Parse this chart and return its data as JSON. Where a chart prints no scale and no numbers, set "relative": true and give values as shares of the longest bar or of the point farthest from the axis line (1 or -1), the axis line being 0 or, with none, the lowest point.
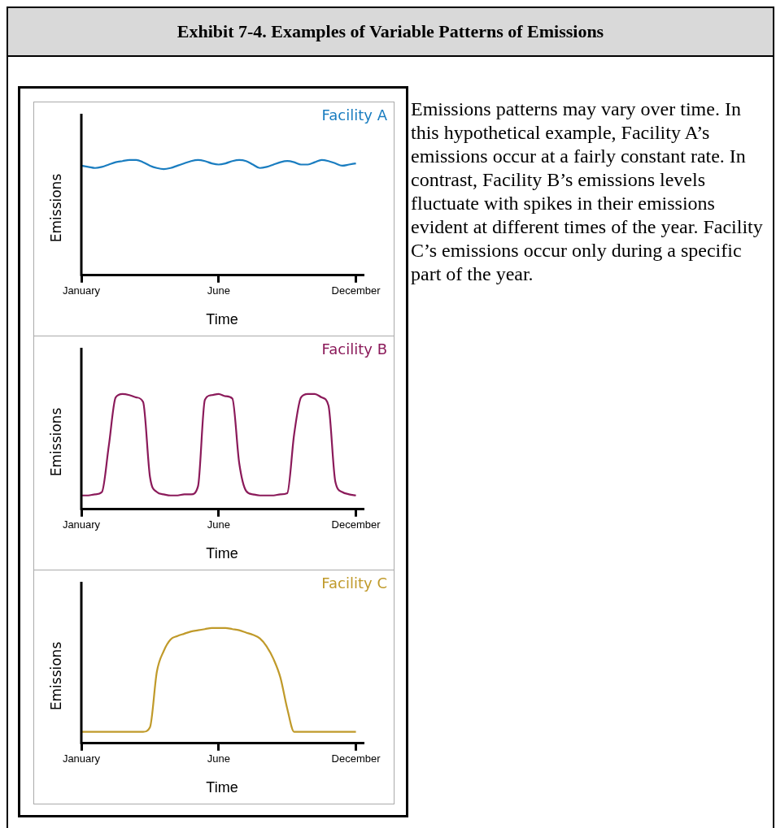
{
  "chart_data": [
    {
      "type": "line",
      "relative": true,
      "title": "Exhibit 7-4.  Examples of Variable Patterns of Emissions",
      "annotations": [
        "Emissions patterns may vary over time.  In this hypothetical example, Facility A’s emissions occur at a fairly constant rate.  In contrast, Facility B’s emissions levels fluctuate with spikes in their emissions evident at different times of the year.  Facility C’s emissions occur only during a specific part of the year."
      ],
      "xlabel": "Time",
      "ylabel": "Emissions",
      "categories": [
        "January",
        null,
        null,
        null,
        null,
        null,
        null,
        null,
        null,
        null,
        null,
        null,
        null,
        null,
        null,
        null,
        null,
        null,
        null,
        null,
        "June",
        null,
        null,
        null,
        null,
        null,
        null,
        null,
        null,
        null,
        null,
        null,
        null,
        null,
        null,
        null,
        null,
        null,
        null,
        null,
        "December",
        null
      ],
      "series": [
        {
          "name": "Facility A",
          "color": "#1a7dc0",
          "values": [
            0.95,
            0.94,
            0.93,
            0.94,
            0.96,
            0.98,
            0.99,
            1.0,
            1.0,
            0.98,
            0.95,
            0.93,
            0.92,
            0.93,
            0.95,
            0.97,
            0.99,
            1.0,
            0.99,
            0.97,
            0.96,
            0.97,
            0.99,
            1.0,
            0.99,
            0.96,
            0.93,
            0.94,
            0.96,
            0.98,
            0.99,
            0.98,
            0.96,
            0.96,
            0.98,
            1.0,
            0.99,
            0.97,
            0.95,
            0.96,
            0.97,
            null
          ]
        }
      ]
    },
    {
      "type": "line",
      "relative": true,
      "xlabel": "Time",
      "ylabel": "Emissions",
      "categories": [
        "January",
        null,
        null,
        null,
        null,
        null,
        null,
        null,
        null,
        null,
        null,
        null,
        null,
        null,
        null,
        null,
        null,
        null,
        null,
        null,
        "June",
        null,
        null,
        null,
        null,
        null,
        null,
        null,
        null,
        null,
        null,
        null,
        null,
        null,
        null,
        null,
        null,
        null,
        null,
        null,
        "December",
        null
      ],
      "series": [
        {
          "name": "Facility B",
          "color": "#8b1a5a",
          "values": [
            0.12,
            0.12,
            0.13,
            0.15,
            0.55,
            0.97,
            1.0,
            0.99,
            0.97,
            0.93,
            0.28,
            0.15,
            0.13,
            0.12,
            0.12,
            0.13,
            0.13,
            0.2,
            0.95,
            0.99,
            1.0,
            0.98,
            0.96,
            0.4,
            0.16,
            0.13,
            0.12,
            0.12,
            0.12,
            0.13,
            0.14,
            0.65,
            0.97,
            1.0,
            1.0,
            0.97,
            0.9,
            0.24,
            0.15,
            0.13,
            0.12,
            null
          ]
        }
      ]
    },
    {
      "type": "line",
      "relative": true,
      "xlabel": "Time",
      "ylabel": "Emissions",
      "categories": [
        "January",
        null,
        null,
        null,
        null,
        null,
        null,
        null,
        null,
        null,
        null,
        null,
        null,
        null,
        null,
        null,
        null,
        null,
        null,
        null,
        "June",
        null,
        null,
        null,
        null,
        null,
        null,
        null,
        null,
        null,
        null,
        null,
        null,
        null,
        null,
        null,
        null,
        null,
        null,
        null,
        "December",
        null
      ],
      "series": [
        {
          "name": "Facility C",
          "color": "#c09a2a",
          "values": [
            0.1,
            0.1,
            0.1,
            0.1,
            0.1,
            0.1,
            0.1,
            0.1,
            0.1,
            0.1,
            0.14,
            0.62,
            0.8,
            0.9,
            0.93,
            0.95,
            0.97,
            0.98,
            0.99,
            1.0,
            1.0,
            1.0,
            0.99,
            0.98,
            0.96,
            0.94,
            0.91,
            0.84,
            0.73,
            0.57,
            0.3,
            0.1,
            0.1,
            0.1,
            0.1,
            0.1,
            0.1,
            0.1,
            0.1,
            0.1,
            0.1,
            null
          ]
        }
      ]
    }
  ]
}
